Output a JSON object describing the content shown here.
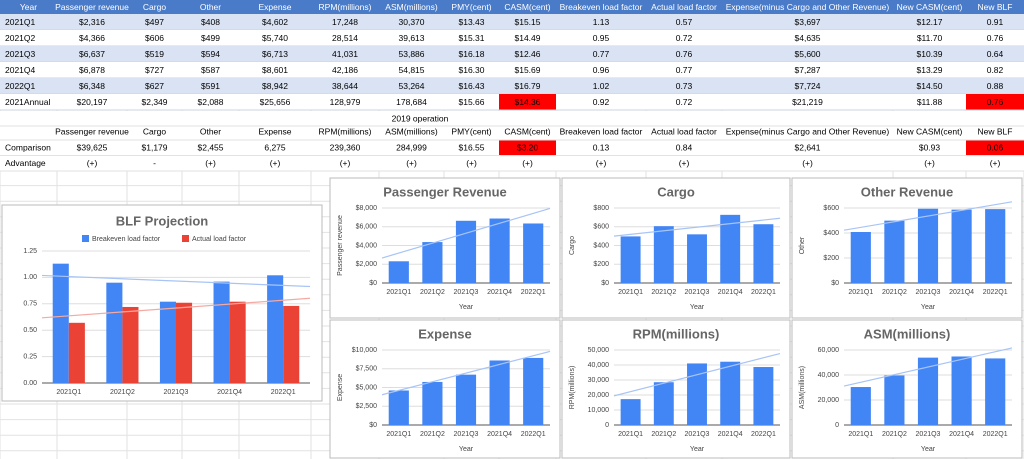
{
  "table": {
    "header": [
      "Year",
      "Passenger revenue",
      "Cargo",
      "Other",
      "Expense",
      "RPM(millions)",
      "ASM(millions)",
      "PMY(cent)",
      "CASM(cent)",
      "Breakeven load factor",
      "Actual load factor",
      "Expense(minus Cargo and Other Revenue)",
      "New CASM(cent)",
      "New BLF"
    ],
    "rows": [
      [
        "2021Q1",
        "$2,316",
        "$497",
        "$408",
        "$4,602",
        "17,248",
        "30,370",
        "$13.43",
        "$15.15",
        "1.13",
        "0.57",
        "$3,697",
        "$12.17",
        "0.91"
      ],
      [
        "2021Q2",
        "$4,366",
        "$606",
        "$499",
        "$5,740",
        "28,514",
        "39,613",
        "$15.31",
        "$14.49",
        "0.95",
        "0.72",
        "$4,635",
        "$11.70",
        "0.76"
      ],
      [
        "2021Q3",
        "$6,637",
        "$519",
        "$594",
        "$6,713",
        "41,031",
        "53,886",
        "$16.18",
        "$12.46",
        "0.77",
        "0.76",
        "$5,600",
        "$10.39",
        "0.64"
      ],
      [
        "2021Q4",
        "$6,878",
        "$727",
        "$587",
        "$8,601",
        "42,186",
        "54,815",
        "$16.30",
        "$15.69",
        "0.96",
        "0.77",
        "$7,287",
        "$13.29",
        "0.82"
      ],
      [
        "2022Q1",
        "$6,348",
        "$627",
        "$591",
        "$8,942",
        "38,644",
        "53,264",
        "$16.43",
        "$16.79",
        "1.02",
        "0.73",
        "$7,724",
        "$14.50",
        "0.88"
      ],
      [
        "2021Annual",
        "$20,197",
        "$2,349",
        "$2,088",
        "$25,656",
        "128,979",
        "178,684",
        "$15.66",
        {
          "text": "$14.36",
          "color": "#ff0000"
        },
        "0.92",
        "0.72",
        "$21,219",
        "$11.88",
        {
          "text": "0.76",
          "color": "#ff0000"
        }
      ]
    ]
  },
  "comparison": {
    "title": "2019 operation",
    "header": [
      "Passenger revenue",
      "Cargo",
      "Other",
      "Expense",
      "RPM(millions)",
      "ASM(millions)",
      "PMY(cent)",
      "CASM(cent)",
      "Breakeven load factor",
      "Actual load factor",
      "Expense(minus Cargo and Other Revenue)",
      "New CASM(cent)",
      "New BLF"
    ],
    "rows": [
      [
        "Comparison",
        "$39,625",
        "$1,179",
        "$2,455",
        "6,275",
        "239,360",
        "284,999",
        "$16.55",
        {
          "text": "$3.20",
          "color": "#ff0000"
        },
        "0.13",
        "0.84",
        "$2,641",
        "$0.93",
        {
          "text": "0.06",
          "color": "#ff0000"
        }
      ],
      [
        "Advantage",
        "(+)",
        "-",
        "(+)",
        "(+)",
        "(+)",
        "(+)",
        "(+)",
        "(+)",
        "(+)",
        "(+)",
        "(+)",
        "(+)",
        "(+)"
      ]
    ]
  },
  "chart_data": [
    {
      "type": "bar",
      "title": "BLF Projection",
      "categories": [
        "2021Q1",
        "2021Q2",
        "2021Q3",
        "2021Q4",
        "2022Q1"
      ],
      "series": [
        {
          "name": "Breakeven load factor",
          "color": "#4285f4",
          "values": [
            1.13,
            0.95,
            0.77,
            0.96,
            1.02
          ]
        },
        {
          "name": "Actual load factor",
          "color": "#ea4335",
          "values": [
            0.57,
            0.72,
            0.76,
            0.77,
            0.73
          ]
        }
      ],
      "ylim": [
        0,
        1.25
      ],
      "yticks": [
        {
          "value": 0,
          "label": "0.00"
        },
        {
          "value": 0.25,
          "label": "0.25"
        },
        {
          "value": 0.5,
          "label": "0.50"
        },
        {
          "value": 0.75,
          "label": "0.75"
        },
        {
          "value": 1,
          "label": "1.00"
        },
        {
          "value": 1.25,
          "label": "1.25"
        }
      ],
      "grid": true,
      "trendline": true,
      "legend": "top"
    },
    {
      "type": "bar",
      "title": "Passenger Revenue",
      "x_label": "Year",
      "y_label": "Passenger revenue",
      "categories": [
        "2021Q1",
        "2021Q2",
        "2021Q3",
        "2021Q4",
        "2022Q1"
      ],
      "values": [
        2316,
        4366,
        6637,
        6878,
        6348
      ],
      "color": "#4285f4",
      "ylim": [
        0,
        8000
      ],
      "yticks": [
        {
          "value": 0,
          "label": "$0"
        },
        {
          "value": 2000,
          "label": "$2,000"
        },
        {
          "value": 4000,
          "label": "$4,000"
        },
        {
          "value": 6000,
          "label": "$6,000"
        },
        {
          "value": 8000,
          "label": "$8,000"
        }
      ],
      "grid": true,
      "trendline": true
    },
    {
      "type": "bar",
      "title": "Cargo",
      "x_label": "Year",
      "y_label": "Cargo",
      "categories": [
        "2021Q1",
        "2021Q2",
        "2021Q3",
        "2021Q4",
        "2022Q1"
      ],
      "values": [
        497,
        606,
        519,
        727,
        627
      ],
      "color": "#4285f4",
      "ylim": [
        0,
        800
      ],
      "yticks": [
        {
          "value": 0,
          "label": "$0"
        },
        {
          "value": 200,
          "label": "$200"
        },
        {
          "value": 400,
          "label": "$400"
        },
        {
          "value": 600,
          "label": "$600"
        },
        {
          "value": 800,
          "label": "$800"
        }
      ],
      "grid": true,
      "trendline": true
    },
    {
      "type": "bar",
      "title": "Other Revenue",
      "x_label": "Year",
      "y_label": "Other",
      "categories": [
        "2021Q1",
        "2021Q2",
        "2021Q3",
        "2021Q4",
        "2022Q1"
      ],
      "values": [
        408,
        499,
        594,
        587,
        591
      ],
      "color": "#4285f4",
      "ylim": [
        0,
        600
      ],
      "yticks": [
        {
          "value": 0,
          "label": "$0"
        },
        {
          "value": 200,
          "label": "$200"
        },
        {
          "value": 400,
          "label": "$400"
        },
        {
          "value": 600,
          "label": "$600"
        }
      ],
      "grid": true,
      "trendline": true
    },
    {
      "type": "bar",
      "title": "Expense",
      "x_label": "Year",
      "y_label": "Expense",
      "categories": [
        "2021Q1",
        "2021Q2",
        "2021Q3",
        "2021Q4",
        "2022Q1"
      ],
      "values": [
        4602,
        5740,
        6713,
        8601,
        8942
      ],
      "color": "#4285f4",
      "ylim": [
        0,
        10000
      ],
      "yticks": [
        {
          "value": 0,
          "label": "$0"
        },
        {
          "value": 2500,
          "label": "$2,500"
        },
        {
          "value": 5000,
          "label": "$5,000"
        },
        {
          "value": 7500,
          "label": "$7,500"
        },
        {
          "value": 10000,
          "label": "$10,000"
        }
      ],
      "grid": true,
      "trendline": true
    },
    {
      "type": "bar",
      "title": "RPM(millions)",
      "x_label": "Year",
      "y_label": "RPM(millions)",
      "categories": [
        "2021Q1",
        "2021Q2",
        "2021Q3",
        "2021Q4",
        "2022Q1"
      ],
      "values": [
        17248,
        28514,
        41031,
        42186,
        38644
      ],
      "color": "#4285f4",
      "ylim": [
        0,
        50000
      ],
      "yticks": [
        0,
        {
          "value": 10000,
          "label": "10,000"
        },
        {
          "value": 20000,
          "label": "20,000"
        },
        {
          "value": 30000,
          "label": "30,000"
        },
        {
          "value": 40000,
          "label": "40,000"
        },
        {
          "value": 50000,
          "label": "50,000"
        }
      ],
      "grid": true,
      "trendline": true
    },
    {
      "type": "bar",
      "title": "ASM(millions)",
      "x_label": "Year",
      "y_label": "ASM(millions)",
      "categories": [
        "2021Q1",
        "2021Q2",
        "2021Q3",
        "2021Q4",
        "2022Q1"
      ],
      "values": [
        30370,
        39613,
        53886,
        54815,
        53264
      ],
      "color": "#4285f4",
      "ylim": [
        0,
        60000
      ],
      "yticks": [
        0,
        {
          "value": 20000,
          "label": "20,000"
        },
        {
          "value": 40000,
          "label": "40,000"
        },
        {
          "value": 60000,
          "label": "60,000"
        }
      ],
      "grid": true,
      "trendline": true
    }
  ]
}
